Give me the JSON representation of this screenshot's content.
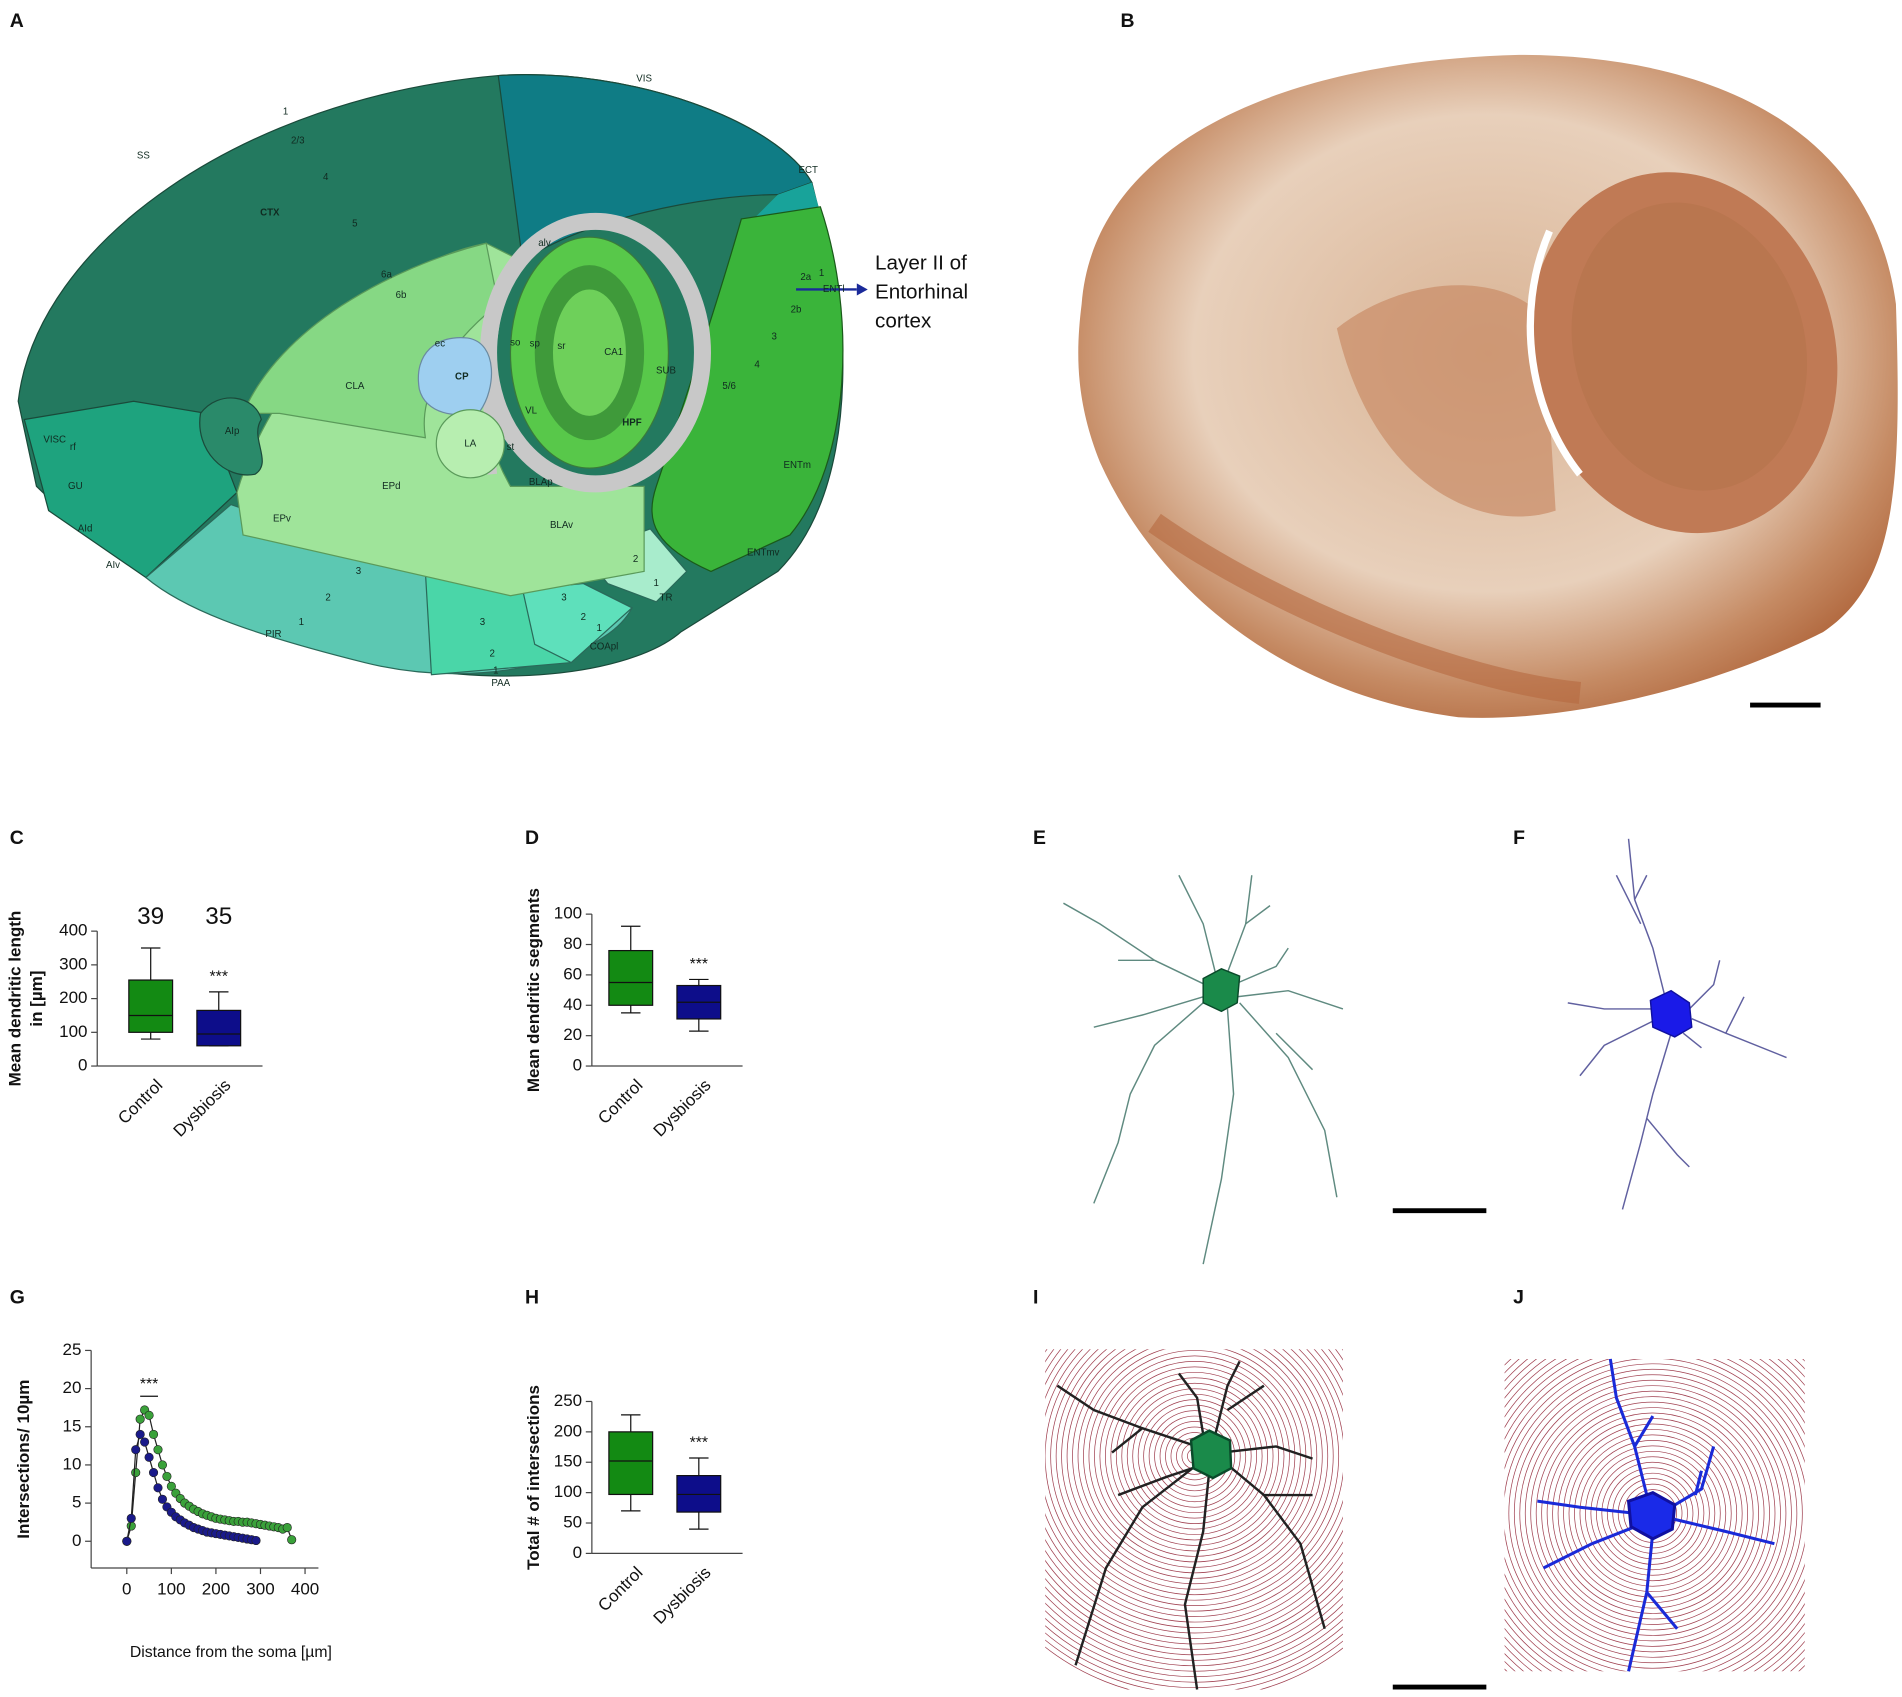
{
  "panels": [
    "A",
    "B",
    "C",
    "D",
    "E",
    "F",
    "G",
    "H",
    "I",
    "J"
  ],
  "atlas_labels": [
    "VIS",
    "SS",
    "ECT",
    "CTX",
    "1",
    "2/3",
    "4",
    "5",
    "6a",
    "6b",
    "alv",
    "ec",
    "CP",
    "CLA",
    "so",
    "sp",
    "sr",
    "CA1",
    "SUB",
    "HPF",
    "VL",
    "LA",
    "st",
    "AIp",
    "EPd",
    "BLAp",
    "EPv",
    "BLAv",
    "VISC",
    "rf",
    "GU",
    "AId",
    "AIv",
    "PIR",
    "PAA",
    "COApl",
    "TR",
    "ENTl",
    "ENTm",
    "ENTmv",
    "2a",
    "2b",
    "5/6",
    "3",
    "2",
    "1",
    "3",
    "2",
    "1",
    "3",
    "2",
    "1",
    "2",
    "1",
    "3",
    "4",
    "1"
  ],
  "annotation": [
    "Layer II of",
    "Entorhinal",
    "cortex"
  ],
  "chart_data": [
    {
      "type": "box",
      "ylabel": [
        "Mean dendritic length",
        "in [µm]"
      ],
      "categories": [
        "Control",
        "Dysbiosis"
      ],
      "boxes": [
        {
          "min": 80,
          "q1": 100,
          "median": 150,
          "q3": 255,
          "max": 350,
          "color": "#138a13"
        },
        {
          "min": 60,
          "q1": 60,
          "median": 95,
          "q3": 165,
          "max": 220,
          "color": "#0d0d8a"
        }
      ],
      "counts": [
        "39",
        "35"
      ],
      "significance": "***",
      "ylim": [
        0,
        400
      ],
      "yticks": [
        0,
        100,
        200,
        300,
        400
      ]
    },
    {
      "type": "box",
      "ylabel": [
        "Mean dendritic segments"
      ],
      "categories": [
        "Control",
        "Dysbiosis"
      ],
      "boxes": [
        {
          "min": 35,
          "q1": 40,
          "median": 55,
          "q3": 76,
          "max": 92,
          "color": "#138a13"
        },
        {
          "min": 23,
          "q1": 31,
          "median": 42,
          "q3": 53,
          "max": 57,
          "color": "#0d0d8a"
        }
      ],
      "significance": "***",
      "ylim": [
        0,
        100
      ],
      "yticks": [
        0,
        20,
        40,
        60,
        80,
        100
      ]
    },
    {
      "type": "line",
      "ylabel": [
        "Intersections/ 10µm"
      ],
      "xlabel": "Distance from the soma [µm]",
      "significance": "***",
      "series": [
        {
          "name": "Control",
          "color": "#3aa13a",
          "x": [
            0,
            10,
            20,
            30,
            40,
            50,
            60,
            70,
            80,
            90,
            100,
            110,
            120,
            130,
            140,
            150,
            160,
            170,
            180,
            190,
            200,
            210,
            220,
            230,
            240,
            250,
            260,
            270,
            280,
            290,
            300,
            310,
            320,
            330,
            340,
            350,
            360,
            370
          ],
          "values": [
            0,
            2,
            9,
            16,
            17.2,
            16.5,
            14,
            12,
            10,
            8.5,
            7.2,
            6.3,
            5.6,
            5,
            4.6,
            4.2,
            3.9,
            3.6,
            3.4,
            3.2,
            3,
            2.9,
            2.8,
            2.7,
            2.6,
            2.6,
            2.5,
            2.5,
            2.4,
            2.3,
            2.2,
            2.1,
            2,
            1.9,
            1.8,
            1.6,
            1.8,
            0.2
          ]
        },
        {
          "name": "Dysbiosis",
          "color": "#1a1a8a",
          "x": [
            0,
            10,
            20,
            30,
            40,
            50,
            60,
            70,
            80,
            90,
            100,
            110,
            120,
            130,
            140,
            150,
            160,
            170,
            180,
            190,
            200,
            210,
            220,
            230,
            240,
            250,
            260,
            270,
            280,
            290
          ],
          "values": [
            0,
            3,
            12,
            14,
            13,
            11,
            9,
            7,
            5.5,
            4.5,
            3.8,
            3.2,
            2.8,
            2.4,
            2.1,
            1.8,
            1.6,
            1.4,
            1.2,
            1.1,
            1.0,
            0.9,
            0.8,
            0.7,
            0.6,
            0.5,
            0.4,
            0.3,
            0.2,
            0.1
          ]
        }
      ],
      "xlim": [
        -80,
        430
      ],
      "xticks": [
        0,
        100,
        200,
        300,
        400
      ],
      "ylim": [
        -3.5,
        25
      ],
      "yticks": [
        0,
        5,
        10,
        15,
        20,
        25
      ]
    },
    {
      "type": "box",
      "ylabel": [
        "Total # of intersections"
      ],
      "categories": [
        "Control",
        "Dysbiosis"
      ],
      "boxes": [
        {
          "min": 70,
          "q1": 97,
          "median": 152,
          "q3": 200,
          "max": 228,
          "color": "#138a13"
        },
        {
          "min": 40,
          "q1": 68,
          "median": 97,
          "q3": 128,
          "max": 157,
          "color": "#0d0d8a"
        }
      ],
      "significance": "***",
      "ylim": [
        0,
        250
      ],
      "yticks": [
        0,
        50,
        100,
        150,
        200,
        250
      ]
    }
  ]
}
